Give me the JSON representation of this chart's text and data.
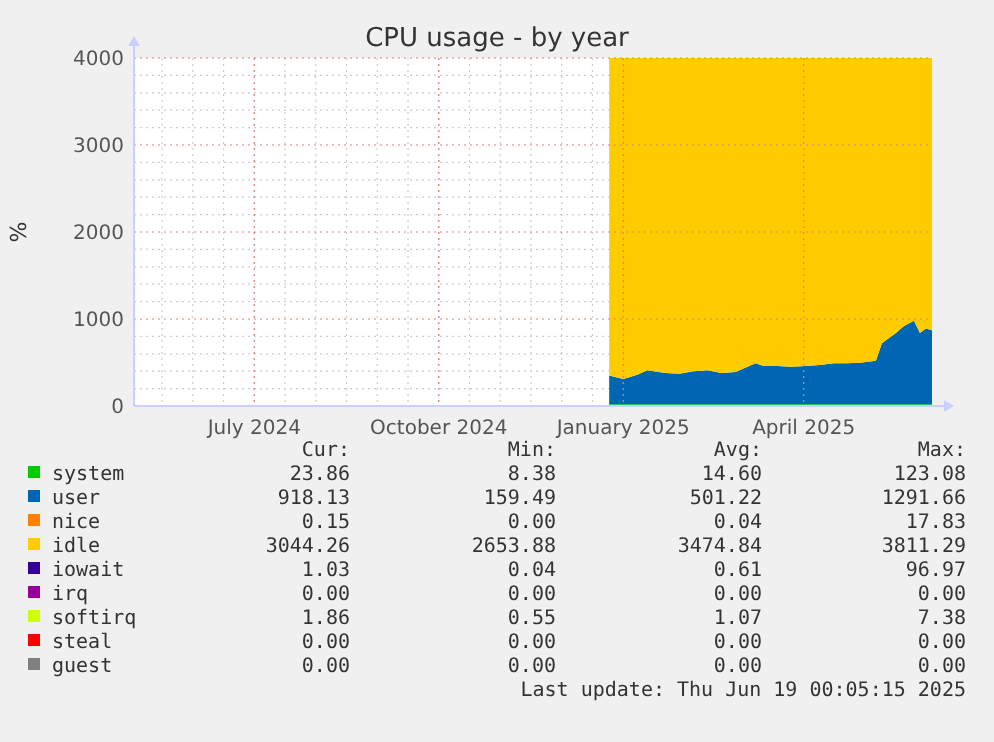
{
  "chart_data": {
    "type": "area",
    "stacked": true,
    "title": "CPU usage - by year",
    "ylabel": "%",
    "legend": "bottom",
    "grid": true,
    "xlim": [
      "2024-05-17",
      "2025-06-19"
    ],
    "xticks": [
      {
        "value": "2024-07-16",
        "label": "July 2024"
      },
      {
        "value": "2024-10-16",
        "label": "October 2024"
      },
      {
        "value": "2025-01-16",
        "label": "January 2025"
      },
      {
        "value": "2025-04-16",
        "label": "April 2025"
      }
    ],
    "ylim": [
      0,
      4000
    ],
    "yticks": [
      0,
      1000,
      2000,
      3000,
      4000
    ],
    "x": [
      "2025-01-09",
      "2025-01-16",
      "2025-01-23",
      "2025-01-28",
      "2025-02-06",
      "2025-02-13",
      "2025-02-20",
      "2025-02-27",
      "2025-03-06",
      "2025-03-13",
      "2025-03-23",
      "2025-03-27",
      "2025-04-03",
      "2025-04-10",
      "2025-04-17",
      "2025-04-24",
      "2025-05-01",
      "2025-05-08",
      "2025-05-15",
      "2025-05-22",
      "2025-05-25",
      "2025-06-01",
      "2025-06-05",
      "2025-06-10",
      "2025-06-13",
      "2025-06-16",
      "2025-06-19"
    ],
    "series": [
      {
        "name": "system",
        "color": "#00cc00",
        "values": [
          20,
          20,
          20,
          20,
          20,
          20,
          20,
          20,
          20,
          20,
          20,
          20,
          20,
          20,
          20,
          20,
          20,
          20,
          20,
          20,
          20,
          20,
          20,
          20,
          20,
          20,
          20
        ]
      },
      {
        "name": "user",
        "color": "#0066b3",
        "values": [
          330,
          290,
          340,
          390,
          360,
          350,
          380,
          390,
          360,
          370,
          470,
          440,
          440,
          430,
          440,
          450,
          470,
          470,
          480,
          500,
          700,
          820,
          900,
          960,
          820,
          870,
          850
        ]
      },
      {
        "name": "nice",
        "color": "#ff8000",
        "values": [
          null,
          null,
          null,
          null,
          null,
          null,
          null,
          null,
          null,
          null,
          null,
          null,
          null,
          null,
          null,
          null,
          null,
          null,
          null,
          null,
          null,
          null,
          null,
          null,
          null,
          null,
          null
        ]
      },
      {
        "name": "idle",
        "color": "#ffcc00",
        "values": [
          3650,
          3690,
          3640,
          3590,
          3620,
          3630,
          3600,
          3590,
          3620,
          3610,
          3510,
          3540,
          3540,
          3550,
          3540,
          3530,
          3510,
          3510,
          3500,
          3480,
          3280,
          3160,
          3080,
          3020,
          3160,
          3110,
          3130
        ]
      },
      {
        "name": "iowait",
        "color": "#330099",
        "values": [
          null,
          null,
          null,
          null,
          null,
          null,
          null,
          null,
          null,
          null,
          null,
          null,
          null,
          null,
          null,
          null,
          null,
          null,
          null,
          null,
          null,
          null,
          null,
          null,
          null,
          null,
          null
        ]
      },
      {
        "name": "irq",
        "color": "#990099",
        "values": [
          null,
          null,
          null,
          null,
          null,
          null,
          null,
          null,
          null,
          null,
          null,
          null,
          null,
          null,
          null,
          null,
          null,
          null,
          null,
          null,
          null,
          null,
          null,
          null,
          null,
          null,
          null
        ]
      },
      {
        "name": "softirq",
        "color": "#ccff00",
        "values": [
          null,
          null,
          null,
          null,
          null,
          null,
          null,
          null,
          null,
          null,
          null,
          null,
          null,
          null,
          null,
          null,
          null,
          null,
          null,
          null,
          null,
          null,
          null,
          null,
          null,
          null,
          null
        ]
      },
      {
        "name": "steal",
        "color": "#ff0000",
        "values": [
          null,
          null,
          null,
          null,
          null,
          null,
          null,
          null,
          null,
          null,
          null,
          null,
          null,
          null,
          null,
          null,
          null,
          null,
          null,
          null,
          null,
          null,
          null,
          null,
          null,
          null,
          null
        ]
      },
      {
        "name": "guest",
        "color": "#808080",
        "values": [
          null,
          null,
          null,
          null,
          null,
          null,
          null,
          null,
          null,
          null,
          null,
          null,
          null,
          null,
          null,
          null,
          null,
          null,
          null,
          null,
          null,
          null,
          null,
          null,
          null,
          null,
          null
        ]
      }
    ],
    "annotations": [
      "Cur:",
      "Min:",
      "Avg:",
      "Max:",
      "23.86",
      "8.38",
      "14.60",
      "123.08",
      "918.13",
      "159.49",
      "501.22",
      "1291.66",
      "0.15",
      "0.00",
      "0.04",
      "17.83",
      "3044.26",
      "2653.88",
      "3474.84",
      "3811.29",
      "1.03",
      "0.04",
      "0.61",
      "96.97",
      "0.00",
      "0.00",
      "0.00",
      "0.00",
      "1.86",
      "0.55",
      "1.07",
      "7.38",
      "0.00",
      "0.00",
      "0.00",
      "0.00",
      "0.00",
      "0.00",
      "0.00",
      "0.00",
      "Last update: Thu Jun 19 00:05:15 2025"
    ]
  }
}
